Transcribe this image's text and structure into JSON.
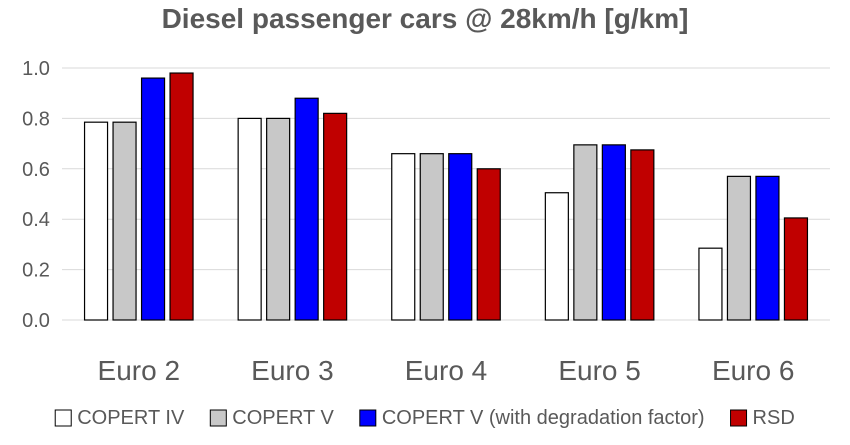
{
  "chart_data": {
    "type": "bar",
    "title": "Diesel passenger cars @ 28km/h [g/km]",
    "xlabel": "",
    "ylabel": "",
    "categories": [
      "Euro 2",
      "Euro 3",
      "Euro 4",
      "Euro 5",
      "Euro 6"
    ],
    "series": [
      {
        "name": "COPERT IV",
        "values": [
          0.785,
          0.8,
          0.66,
          0.505,
          0.285
        ],
        "color": "#ffffff"
      },
      {
        "name": "COPERT V",
        "values": [
          0.785,
          0.8,
          0.66,
          0.695,
          0.57
        ],
        "color": "#c8c8c8"
      },
      {
        "name": "COPERT V (with degradation factor)",
        "values": [
          0.96,
          0.88,
          0.66,
          0.695,
          0.57
        ],
        "color": "#0000ff"
      },
      {
        "name": "RSD",
        "values": [
          0.98,
          0.82,
          0.6,
          0.675,
          0.405
        ],
        "color": "#c00000"
      }
    ],
    "ylim": [
      0,
      1.0
    ],
    "yticks": [
      "0.0",
      "0.2",
      "0.4",
      "0.6",
      "0.8",
      "1.0"
    ],
    "grid": true,
    "legend_position": "bottom",
    "colors": {
      "title": "#595959",
      "tick_label": "#595959",
      "gridline": "#d9d9d9",
      "bar_stroke": "#000000"
    }
  }
}
